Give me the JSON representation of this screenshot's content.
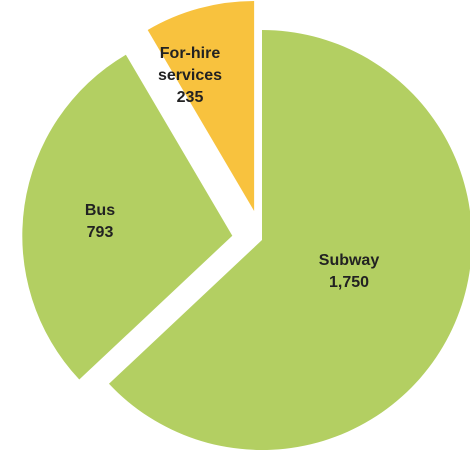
{
  "chart_data": {
    "type": "pie",
    "title": "",
    "slices": [
      {
        "label": "Subway",
        "value": 1750,
        "value_label": "1,750",
        "color": "#b3cf62"
      },
      {
        "label": "Bus",
        "value": 793,
        "value_label": "793",
        "color": "#b3cf62"
      },
      {
        "label": "For-hire services",
        "label_lines": [
          "For-hire",
          "services"
        ],
        "value": 235,
        "value_label": "235",
        "color": "#f8c23e"
      }
    ],
    "exploded_slices": [
      "Bus",
      "For-hire services"
    ],
    "legend": "none"
  }
}
